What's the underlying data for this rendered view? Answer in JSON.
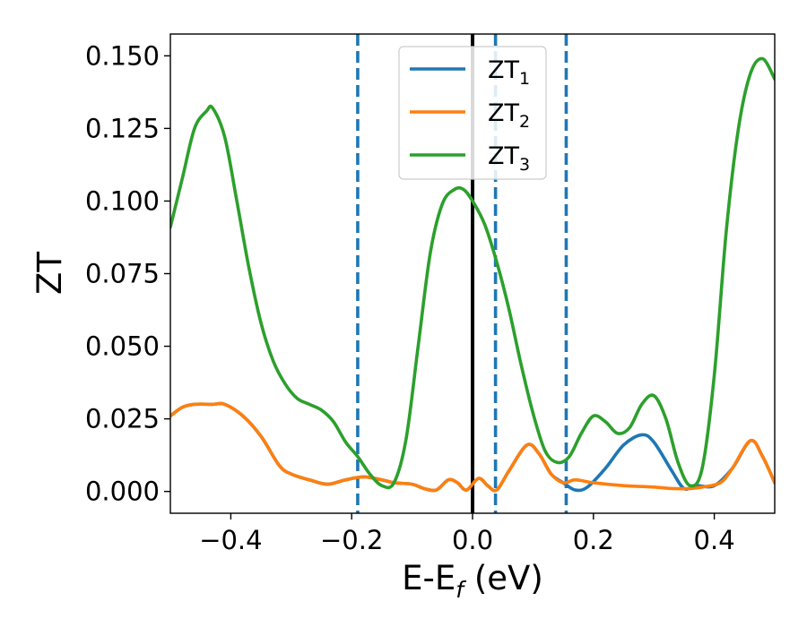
{
  "chart_data": {
    "type": "line",
    "xlabel": {
      "main": "E-E",
      "sub": "f",
      "unit": " (eV)"
    },
    "ylabel": "ZT",
    "xlim": [
      -0.5,
      0.5
    ],
    "ylim": [
      -0.0075,
      0.1575
    ],
    "xticks": [
      -0.4,
      -0.2,
      0.0,
      0.2,
      0.4
    ],
    "xtick_labels": [
      "−0.4",
      "−0.2",
      "0.0",
      "0.2",
      "0.4"
    ],
    "yticks": [
      0.0,
      0.025,
      0.05,
      0.075,
      0.1,
      0.125,
      0.15
    ],
    "ytick_labels": [
      "0.000",
      "0.025",
      "0.050",
      "0.075",
      "0.100",
      "0.125",
      "0.150"
    ],
    "grid": false,
    "legend_position": "top-center",
    "vlines": [
      {
        "x": 0.0,
        "style": "solid",
        "color": "#000000"
      },
      {
        "x": -0.19,
        "style": "dashed",
        "color": "#1f77b4"
      },
      {
        "x": 0.038,
        "style": "dashed",
        "color": "#1f77b4"
      },
      {
        "x": 0.155,
        "style": "dashed",
        "color": "#1f77b4"
      }
    ],
    "series": [
      {
        "name": "ZT",
        "sub": "1",
        "color": "#1f77b4",
        "points": [
          [
            -0.5,
            0.026
          ],
          [
            -0.48,
            0.029
          ],
          [
            -0.46,
            0.03
          ],
          [
            -0.43,
            0.03
          ],
          [
            -0.41,
            0.03
          ],
          [
            -0.38,
            0.026
          ],
          [
            -0.35,
            0.019
          ],
          [
            -0.32,
            0.009
          ],
          [
            -0.3,
            0.006
          ],
          [
            -0.27,
            0.004
          ],
          [
            -0.24,
            0.0025
          ],
          [
            -0.21,
            0.004
          ],
          [
            -0.18,
            0.005
          ],
          [
            -0.15,
            0.004
          ],
          [
            -0.13,
            0.003
          ],
          [
            -0.1,
            0.0025
          ],
          [
            -0.08,
            0.001
          ],
          [
            -0.06,
            0.0005
          ],
          [
            -0.04,
            0.004
          ],
          [
            -0.025,
            0.003
          ],
          [
            -0.01,
            0.0005
          ],
          [
            0.01,
            0.0045
          ],
          [
            0.025,
            0.002
          ],
          [
            0.04,
            0.0005
          ],
          [
            0.06,
            0.007
          ],
          [
            0.09,
            0.016
          ],
          [
            0.11,
            0.013
          ],
          [
            0.13,
            0.006
          ],
          [
            0.15,
            0.003
          ],
          [
            0.17,
            0.0005
          ],
          [
            0.19,
            0.0015
          ],
          [
            0.22,
            0.008
          ],
          [
            0.25,
            0.016
          ],
          [
            0.28,
            0.0195
          ],
          [
            0.3,
            0.017
          ],
          [
            0.33,
            0.007
          ],
          [
            0.35,
            0.001
          ],
          [
            0.37,
            0.002
          ],
          [
            0.4,
            0.002
          ],
          [
            0.43,
            0.008
          ],
          [
            0.46,
            0.0175
          ],
          [
            0.48,
            0.012
          ],
          [
            0.5,
            0.003
          ]
        ]
      },
      {
        "name": "ZT",
        "sub": "2",
        "color": "#ff7f0e",
        "points": [
          [
            -0.5,
            0.026
          ],
          [
            -0.48,
            0.029
          ],
          [
            -0.46,
            0.03
          ],
          [
            -0.43,
            0.03
          ],
          [
            -0.41,
            0.03
          ],
          [
            -0.38,
            0.026
          ],
          [
            -0.35,
            0.019
          ],
          [
            -0.32,
            0.009
          ],
          [
            -0.3,
            0.006
          ],
          [
            -0.27,
            0.004
          ],
          [
            -0.24,
            0.0025
          ],
          [
            -0.21,
            0.004
          ],
          [
            -0.18,
            0.005
          ],
          [
            -0.15,
            0.004
          ],
          [
            -0.13,
            0.003
          ],
          [
            -0.1,
            0.0025
          ],
          [
            -0.08,
            0.001
          ],
          [
            -0.06,
            0.0005
          ],
          [
            -0.04,
            0.004
          ],
          [
            -0.025,
            0.003
          ],
          [
            -0.01,
            0.0005
          ],
          [
            0.01,
            0.0045
          ],
          [
            0.025,
            0.002
          ],
          [
            0.04,
            0.0005
          ],
          [
            0.06,
            0.007
          ],
          [
            0.09,
            0.016
          ],
          [
            0.11,
            0.013
          ],
          [
            0.13,
            0.006
          ],
          [
            0.15,
            0.003
          ],
          [
            0.17,
            0.004
          ],
          [
            0.2,
            0.003
          ],
          [
            0.25,
            0.002
          ],
          [
            0.3,
            0.0015
          ],
          [
            0.33,
            0.001
          ],
          [
            0.36,
            0.001
          ],
          [
            0.38,
            0.0015
          ],
          [
            0.41,
            0.003
          ],
          [
            0.43,
            0.008
          ],
          [
            0.46,
            0.0175
          ],
          [
            0.48,
            0.012
          ],
          [
            0.5,
            0.003
          ]
        ]
      },
      {
        "name": "ZT",
        "sub": "3",
        "color": "#2ca02c",
        "points": [
          [
            -0.5,
            0.091
          ],
          [
            -0.48,
            0.108
          ],
          [
            -0.46,
            0.125
          ],
          [
            -0.44,
            0.131
          ],
          [
            -0.43,
            0.132
          ],
          [
            -0.41,
            0.122
          ],
          [
            -0.39,
            0.1
          ],
          [
            -0.37,
            0.077
          ],
          [
            -0.35,
            0.058
          ],
          [
            -0.33,
            0.045
          ],
          [
            -0.31,
            0.037
          ],
          [
            -0.29,
            0.032
          ],
          [
            -0.27,
            0.03
          ],
          [
            -0.25,
            0.028
          ],
          [
            -0.23,
            0.024
          ],
          [
            -0.21,
            0.017
          ],
          [
            -0.19,
            0.012
          ],
          [
            -0.17,
            0.006
          ],
          [
            -0.15,
            0.002
          ],
          [
            -0.13,
            0.003
          ],
          [
            -0.11,
            0.018
          ],
          [
            -0.09,
            0.05
          ],
          [
            -0.07,
            0.082
          ],
          [
            -0.05,
            0.099
          ],
          [
            -0.03,
            0.104
          ],
          [
            -0.015,
            0.104
          ],
          [
            0.0,
            0.1
          ],
          [
            0.02,
            0.092
          ],
          [
            0.04,
            0.079
          ],
          [
            0.06,
            0.063
          ],
          [
            0.08,
            0.044
          ],
          [
            0.1,
            0.027
          ],
          [
            0.12,
            0.014
          ],
          [
            0.14,
            0.01
          ],
          [
            0.16,
            0.012
          ],
          [
            0.18,
            0.02
          ],
          [
            0.2,
            0.026
          ],
          [
            0.22,
            0.024
          ],
          [
            0.24,
            0.02
          ],
          [
            0.26,
            0.022
          ],
          [
            0.28,
            0.03
          ],
          [
            0.3,
            0.033
          ],
          [
            0.32,
            0.025
          ],
          [
            0.34,
            0.01
          ],
          [
            0.36,
            0.002
          ],
          [
            0.38,
            0.008
          ],
          [
            0.4,
            0.04
          ],
          [
            0.42,
            0.09
          ],
          [
            0.44,
            0.125
          ],
          [
            0.46,
            0.144
          ],
          [
            0.48,
            0.149
          ],
          [
            0.5,
            0.142
          ]
        ]
      }
    ]
  }
}
